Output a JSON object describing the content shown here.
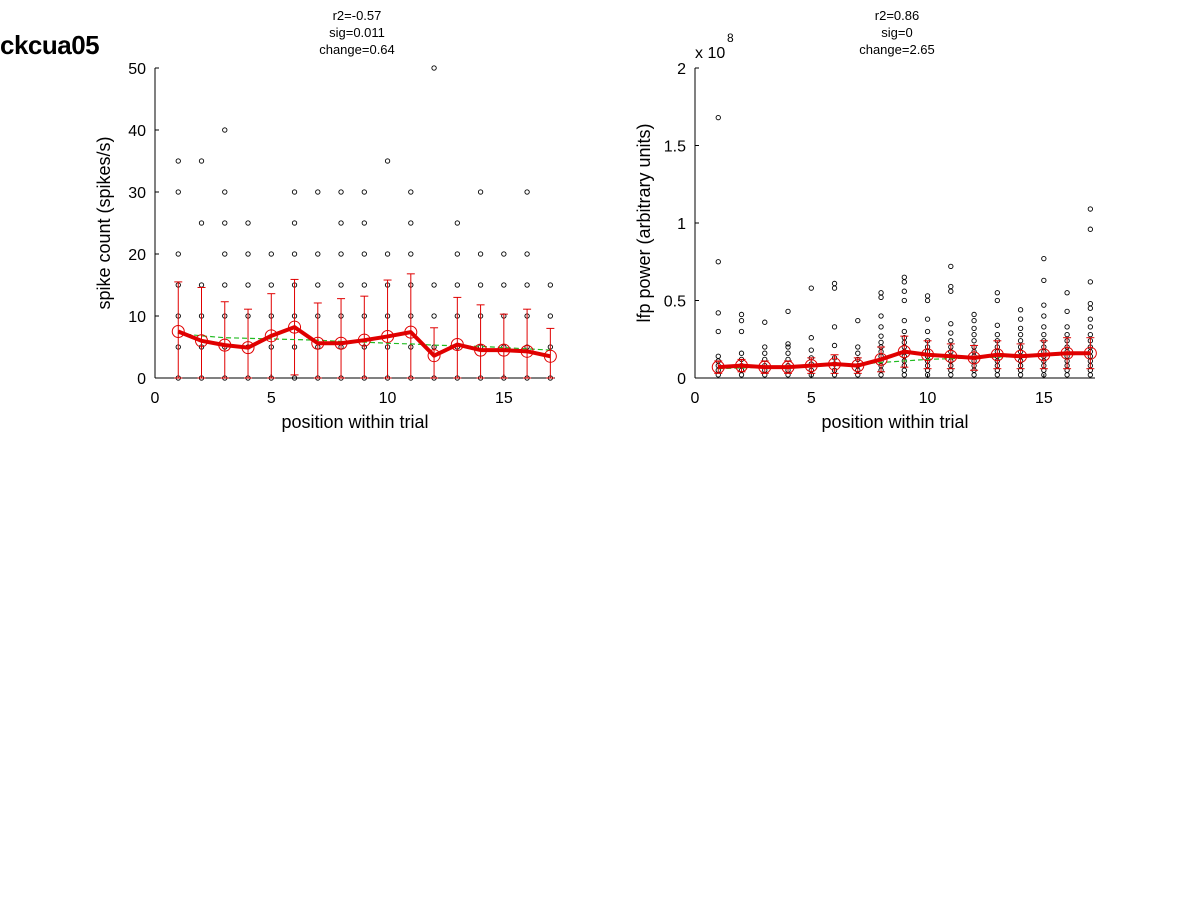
{
  "figure_title": "ckcua05",
  "chart_data": [
    {
      "type": "scatter",
      "annotation": [
        "r2=-0.57",
        "sig=0.011",
        "change=0.64"
      ],
      "xlabel": "position within trial",
      "ylabel": "spike count (spikes/s)",
      "xlim": [
        0,
        17.2
      ],
      "ylim": [
        0,
        50
      ],
      "xticks": [
        0,
        5,
        10,
        15
      ],
      "yticks": [
        0,
        10,
        20,
        30,
        40,
        50
      ],
      "exponent_label": "",
      "colors": {
        "points": "#000000",
        "mean": "#e00000",
        "fit": "#22bb22"
      },
      "points": [
        [
          1,
          0
        ],
        [
          1,
          5
        ],
        [
          1,
          10
        ],
        [
          1,
          15
        ],
        [
          1,
          20
        ],
        [
          1,
          30
        ],
        [
          1,
          35
        ],
        [
          2,
          0
        ],
        [
          2,
          5
        ],
        [
          2,
          10
        ],
        [
          2,
          15
        ],
        [
          2,
          25
        ],
        [
          2,
          35
        ],
        [
          3,
          0
        ],
        [
          3,
          5
        ],
        [
          3,
          10
        ],
        [
          3,
          15
        ],
        [
          3,
          20
        ],
        [
          3,
          25
        ],
        [
          3,
          30
        ],
        [
          3,
          40
        ],
        [
          4,
          0
        ],
        [
          4,
          5
        ],
        [
          4,
          10
        ],
        [
          4,
          15
        ],
        [
          4,
          20
        ],
        [
          4,
          25
        ],
        [
          5,
          0
        ],
        [
          5,
          5
        ],
        [
          5,
          10
        ],
        [
          5,
          15
        ],
        [
          5,
          20
        ],
        [
          6,
          0
        ],
        [
          6,
          5
        ],
        [
          6,
          10
        ],
        [
          6,
          15
        ],
        [
          6,
          20
        ],
        [
          6,
          25
        ],
        [
          6,
          30
        ],
        [
          7,
          0
        ],
        [
          7,
          5
        ],
        [
          7,
          10
        ],
        [
          7,
          15
        ],
        [
          7,
          20
        ],
        [
          7,
          30
        ],
        [
          8,
          0
        ],
        [
          8,
          5
        ],
        [
          8,
          10
        ],
        [
          8,
          15
        ],
        [
          8,
          20
        ],
        [
          8,
          25
        ],
        [
          8,
          30
        ],
        [
          9,
          0
        ],
        [
          9,
          5
        ],
        [
          9,
          10
        ],
        [
          9,
          15
        ],
        [
          9,
          20
        ],
        [
          9,
          25
        ],
        [
          9,
          30
        ],
        [
          10,
          0
        ],
        [
          10,
          5
        ],
        [
          10,
          10
        ],
        [
          10,
          15
        ],
        [
          10,
          20
        ],
        [
          10,
          35
        ],
        [
          11,
          0
        ],
        [
          11,
          5
        ],
        [
          11,
          10
        ],
        [
          11,
          15
        ],
        [
          11,
          20
        ],
        [
          11,
          25
        ],
        [
          11,
          30
        ],
        [
          12,
          0
        ],
        [
          12,
          5
        ],
        [
          12,
          10
        ],
        [
          12,
          15
        ],
        [
          12,
          50
        ],
        [
          13,
          0
        ],
        [
          13,
          5
        ],
        [
          13,
          10
        ],
        [
          13,
          15
        ],
        [
          13,
          20
        ],
        [
          13,
          25
        ],
        [
          14,
          0
        ],
        [
          14,
          5
        ],
        [
          14,
          10
        ],
        [
          14,
          15
        ],
        [
          14,
          20
        ],
        [
          14,
          30
        ],
        [
          15,
          0
        ],
        [
          15,
          5
        ],
        [
          15,
          10
        ],
        [
          15,
          15
        ],
        [
          15,
          20
        ],
        [
          16,
          0
        ],
        [
          16,
          5
        ],
        [
          16,
          10
        ],
        [
          16,
          15
        ],
        [
          16,
          20
        ],
        [
          16,
          30
        ],
        [
          17,
          0
        ],
        [
          17,
          5
        ],
        [
          17,
          10
        ],
        [
          17,
          15
        ]
      ],
      "mean": [
        7.5,
        6.0,
        5.3,
        4.9,
        6.8,
        8.2,
        5.6,
        5.6,
        6.1,
        6.7,
        7.4,
        3.6,
        5.4,
        4.5,
        4.5,
        4.3,
        3.5
      ],
      "error": [
        8.0,
        8.6,
        7.0,
        6.2,
        6.8,
        7.7,
        6.5,
        7.2,
        7.1,
        9.1,
        9.4,
        4.5,
        7.6,
        7.3,
        5.8,
        6.8,
        4.5
      ],
      "fit": [
        7.2,
        6.8,
        6.5,
        6.4,
        6.3,
        6.2,
        6.1,
        5.9,
        5.8,
        5.6,
        5.5,
        5.3,
        5.2,
        5.1,
        4.9,
        4.7,
        4.5
      ]
    },
    {
      "type": "scatter",
      "annotation": [
        "r2=0.86",
        "sig=0",
        "change=2.65"
      ],
      "xlabel": "position within trial",
      "ylabel": "lfp power (arbitrary units)",
      "xlim": [
        0,
        17.2
      ],
      "ylim": [
        0,
        2
      ],
      "xticks": [
        0,
        5,
        10,
        15
      ],
      "yticks": [
        0,
        0.5,
        1,
        1.5,
        2
      ],
      "exponent_label": "x 10",
      "exponent_power": "8",
      "colors": {
        "points": "#000000",
        "mean": "#e00000",
        "fit": "#22bb22"
      },
      "points": [
        [
          1,
          0.02
        ],
        [
          1,
          0.05
        ],
        [
          1,
          0.08
        ],
        [
          1,
          0.11
        ],
        [
          1,
          0.14
        ],
        [
          1,
          0.3
        ],
        [
          1,
          0.42
        ],
        [
          1,
          0.75
        ],
        [
          1,
          1.68
        ],
        [
          2,
          0.02
        ],
        [
          2,
          0.05
        ],
        [
          2,
          0.08
        ],
        [
          2,
          0.12
        ],
        [
          2,
          0.16
        ],
        [
          2,
          0.3
        ],
        [
          2,
          0.37
        ],
        [
          2,
          0.41
        ],
        [
          3,
          0.02
        ],
        [
          3,
          0.05
        ],
        [
          3,
          0.08
        ],
        [
          3,
          0.12
        ],
        [
          3,
          0.16
        ],
        [
          3,
          0.2
        ],
        [
          3,
          0.36
        ],
        [
          4,
          0.02
        ],
        [
          4,
          0.05
        ],
        [
          4,
          0.08
        ],
        [
          4,
          0.12
        ],
        [
          4,
          0.16
        ],
        [
          4,
          0.2
        ],
        [
          4,
          0.22
        ],
        [
          4,
          0.43
        ],
        [
          5,
          0.02
        ],
        [
          5,
          0.05
        ],
        [
          5,
          0.09
        ],
        [
          5,
          0.13
        ],
        [
          5,
          0.18
        ],
        [
          5,
          0.26
        ],
        [
          5,
          0.58
        ],
        [
          6,
          0.02
        ],
        [
          6,
          0.05
        ],
        [
          6,
          0.09
        ],
        [
          6,
          0.13
        ],
        [
          6,
          0.21
        ],
        [
          6,
          0.33
        ],
        [
          6,
          0.58
        ],
        [
          6,
          0.61
        ],
        [
          7,
          0.02
        ],
        [
          7,
          0.05
        ],
        [
          7,
          0.08
        ],
        [
          7,
          0.12
        ],
        [
          7,
          0.16
        ],
        [
          7,
          0.2
        ],
        [
          7,
          0.37
        ],
        [
          8,
          0.02
        ],
        [
          8,
          0.05
        ],
        [
          8,
          0.08
        ],
        [
          8,
          0.11
        ],
        [
          8,
          0.14
        ],
        [
          8,
          0.17
        ],
        [
          8,
          0.2
        ],
        [
          8,
          0.23
        ],
        [
          8,
          0.27
        ],
        [
          8,
          0.33
        ],
        [
          8,
          0.4
        ],
        [
          8,
          0.52
        ],
        [
          8,
          0.55
        ],
        [
          9,
          0.02
        ],
        [
          9,
          0.05
        ],
        [
          9,
          0.08
        ],
        [
          9,
          0.11
        ],
        [
          9,
          0.14
        ],
        [
          9,
          0.17
        ],
        [
          9,
          0.2
        ],
        [
          9,
          0.23
        ],
        [
          9,
          0.26
        ],
        [
          9,
          0.3
        ],
        [
          9,
          0.37
        ],
        [
          9,
          0.5
        ],
        [
          9,
          0.56
        ],
        [
          9,
          0.62
        ],
        [
          9,
          0.65
        ],
        [
          10,
          0.02
        ],
        [
          10,
          0.05
        ],
        [
          10,
          0.08
        ],
        [
          10,
          0.11
        ],
        [
          10,
          0.14
        ],
        [
          10,
          0.17
        ],
        [
          10,
          0.2
        ],
        [
          10,
          0.24
        ],
        [
          10,
          0.3
        ],
        [
          10,
          0.38
        ],
        [
          10,
          0.5
        ],
        [
          10,
          0.53
        ],
        [
          11,
          0.02
        ],
        [
          11,
          0.05
        ],
        [
          11,
          0.08
        ],
        [
          11,
          0.11
        ],
        [
          11,
          0.14
        ],
        [
          11,
          0.17
        ],
        [
          11,
          0.2
        ],
        [
          11,
          0.24
        ],
        [
          11,
          0.29
        ],
        [
          11,
          0.35
        ],
        [
          11,
          0.56
        ],
        [
          11,
          0.59
        ],
        [
          11,
          0.72
        ],
        [
          12,
          0.02
        ],
        [
          12,
          0.05
        ],
        [
          12,
          0.08
        ],
        [
          12,
          0.11
        ],
        [
          12,
          0.14
        ],
        [
          12,
          0.17
        ],
        [
          12,
          0.2
        ],
        [
          12,
          0.24
        ],
        [
          12,
          0.28
        ],
        [
          12,
          0.32
        ],
        [
          12,
          0.37
        ],
        [
          12,
          0.41
        ],
        [
          13,
          0.02
        ],
        [
          13,
          0.05
        ],
        [
          13,
          0.08
        ],
        [
          13,
          0.11
        ],
        [
          13,
          0.14
        ],
        [
          13,
          0.17
        ],
        [
          13,
          0.2
        ],
        [
          13,
          0.24
        ],
        [
          13,
          0.28
        ],
        [
          13,
          0.34
        ],
        [
          13,
          0.5
        ],
        [
          13,
          0.55
        ],
        [
          14,
          0.02
        ],
        [
          14,
          0.05
        ],
        [
          14,
          0.08
        ],
        [
          14,
          0.11
        ],
        [
          14,
          0.14
        ],
        [
          14,
          0.17
        ],
        [
          14,
          0.2
        ],
        [
          14,
          0.24
        ],
        [
          14,
          0.28
        ],
        [
          14,
          0.32
        ],
        [
          14,
          0.38
        ],
        [
          14,
          0.44
        ],
        [
          15,
          0.02
        ],
        [
          15,
          0.05
        ],
        [
          15,
          0.08
        ],
        [
          15,
          0.11
        ],
        [
          15,
          0.14
        ],
        [
          15,
          0.17
        ],
        [
          15,
          0.2
        ],
        [
          15,
          0.24
        ],
        [
          15,
          0.28
        ],
        [
          15,
          0.33
        ],
        [
          15,
          0.4
        ],
        [
          15,
          0.47
        ],
        [
          15,
          0.63
        ],
        [
          15,
          0.77
        ],
        [
          16,
          0.02
        ],
        [
          16,
          0.05
        ],
        [
          16,
          0.08
        ],
        [
          16,
          0.11
        ],
        [
          16,
          0.14
        ],
        [
          16,
          0.17
        ],
        [
          16,
          0.2
        ],
        [
          16,
          0.24
        ],
        [
          16,
          0.28
        ],
        [
          16,
          0.33
        ],
        [
          16,
          0.43
        ],
        [
          16,
          0.55
        ],
        [
          17,
          0.02
        ],
        [
          17,
          0.05
        ],
        [
          17,
          0.08
        ],
        [
          17,
          0.11
        ],
        [
          17,
          0.14
        ],
        [
          17,
          0.17
        ],
        [
          17,
          0.2
        ],
        [
          17,
          0.24
        ],
        [
          17,
          0.28
        ],
        [
          17,
          0.33
        ],
        [
          17,
          0.38
        ],
        [
          17,
          0.45
        ],
        [
          17,
          0.48
        ],
        [
          17,
          0.62
        ],
        [
          17,
          0.96
        ],
        [
          17,
          1.09
        ]
      ],
      "mean": [
        0.07,
        0.08,
        0.07,
        0.07,
        0.08,
        0.09,
        0.08,
        0.12,
        0.17,
        0.15,
        0.14,
        0.13,
        0.15,
        0.14,
        0.15,
        0.16,
        0.16
      ],
      "error": [
        0.04,
        0.04,
        0.04,
        0.04,
        0.05,
        0.06,
        0.05,
        0.08,
        0.1,
        0.09,
        0.08,
        0.08,
        0.09,
        0.08,
        0.09,
        0.1,
        0.1
      ],
      "fit": [
        0.06,
        0.065,
        0.07,
        0.075,
        0.08,
        0.085,
        0.09,
        0.1,
        0.11,
        0.12,
        0.125,
        0.13,
        0.135,
        0.14,
        0.145,
        0.15,
        0.155
      ]
    }
  ]
}
